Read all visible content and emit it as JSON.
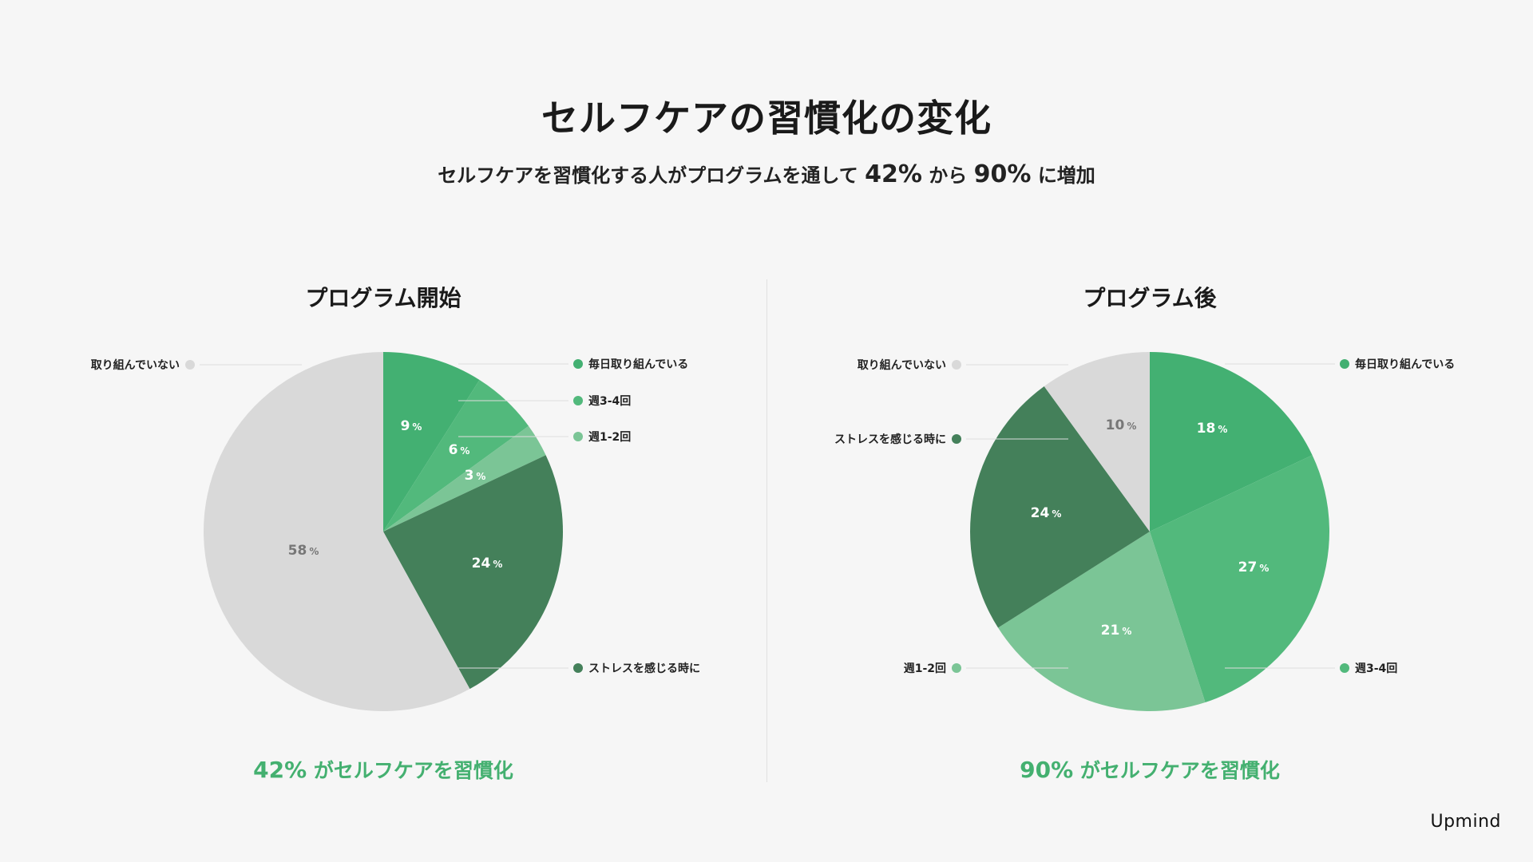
{
  "title": "セルフケアの習慣化の変化",
  "subtitle": {
    "pre": "セルフケアを習慣化する人がプログラムを通して",
    "from": "42%",
    "mid": "から",
    "to": "90%",
    "post": "に増加"
  },
  "brand": "Upmind",
  "percent_suffix": "%",
  "colors": {
    "daily": "#43b072",
    "weekly34": "#52b97c",
    "weekly12": "#7bc596",
    "stress": "#44805a",
    "none": "#d9d9d9",
    "accent": "#44b070"
  },
  "chart_data": [
    {
      "type": "pie",
      "title": "プログラム開始",
      "summary_pct": "42%",
      "summary_text": "がセルフケアを習慣化",
      "slices": [
        {
          "key": "daily",
          "label": "毎日取り組んでいる",
          "value": 9
        },
        {
          "key": "weekly34",
          "label": "週3-4回",
          "value": 6
        },
        {
          "key": "weekly12",
          "label": "週1-2回",
          "value": 3
        },
        {
          "key": "stress",
          "label": "ストレスを感じる時に",
          "value": 24
        },
        {
          "key": "none",
          "label": "取り組んでいない",
          "value": 58
        }
      ]
    },
    {
      "type": "pie",
      "title": "プログラム後",
      "summary_pct": "90%",
      "summary_text": "がセルフケアを習慣化",
      "slices": [
        {
          "key": "daily",
          "label": "毎日取り組んでいる",
          "value": 18
        },
        {
          "key": "weekly34",
          "label": "週3-4回",
          "value": 27
        },
        {
          "key": "weekly12",
          "label": "週1-2回",
          "value": 21
        },
        {
          "key": "stress",
          "label": "ストレスを感じる時に",
          "value": 24
        },
        {
          "key": "none",
          "label": "取り組んでいない",
          "value": 10
        }
      ]
    }
  ]
}
